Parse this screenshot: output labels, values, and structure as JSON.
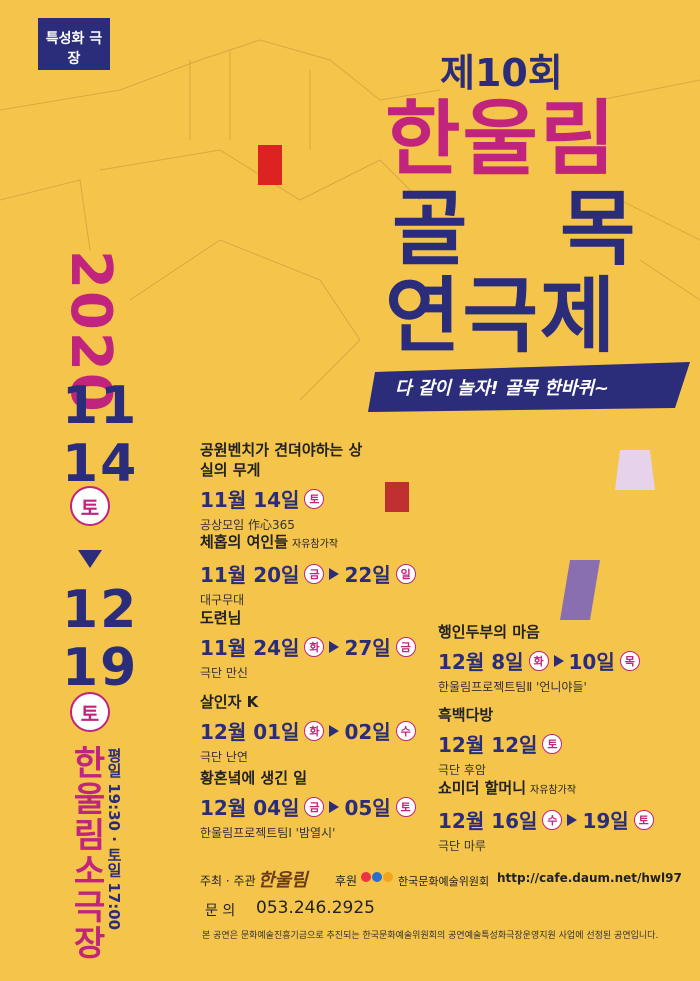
{
  "badge": "특성화 극장",
  "edition": "제10회",
  "title": {
    "line1": "한울림",
    "line2": "골 목",
    "line3": "연극제"
  },
  "slogan": "다 같이 놀자! 골목 한바퀴~",
  "period": {
    "year": "2020",
    "start": {
      "month": "11",
      "day": "14",
      "weekday": "토"
    },
    "end": {
      "month": "12",
      "day": "19",
      "weekday": "토"
    }
  },
  "venue": "한울림소극장",
  "showtimes": "평일 19:30 · 토일 17:00",
  "events": [
    {
      "title": "공원벤치가 견뎌야하는 상실의 무게",
      "start": {
        "date": "11월 14일",
        "weekday": "토"
      },
      "company": "공상모임 作心365"
    },
    {
      "title": "체홉의 여인들",
      "note": "자유참가작",
      "start": {
        "date": "11월 20일",
        "weekday": "금"
      },
      "end": {
        "date": "22일",
        "weekday": "일"
      },
      "company": "대구무대"
    },
    {
      "title": "도련님",
      "start": {
        "date": "11월 24일",
        "weekday": "화"
      },
      "end": {
        "date": "27일",
        "weekday": "금"
      },
      "company": "극단 만신"
    },
    {
      "title": "살인자 K",
      "start": {
        "date": "12월 01일",
        "weekday": "화"
      },
      "end": {
        "date": "02일",
        "weekday": "수"
      },
      "company": "극단 난연"
    },
    {
      "title": "황혼녘에 생긴 일",
      "start": {
        "date": "12월 04일",
        "weekday": "금"
      },
      "end": {
        "date": "05일",
        "weekday": "토"
      },
      "company": "한울림프로젝트팀Ⅰ '밤열시'"
    },
    {
      "title": "행인두부의 마음",
      "start": {
        "date": "12월 8일",
        "weekday": "화"
      },
      "end": {
        "date": "10일",
        "weekday": "목"
      },
      "company": "한울림프로젝트팀Ⅱ '언니야들'"
    },
    {
      "title": "흑백다방",
      "start": {
        "date": "12월 12일",
        "weekday": "토"
      },
      "company": "극단 후암"
    },
    {
      "title": "쇼미더 할머니",
      "note": "자유참가작",
      "start": {
        "date": "12월 16일",
        "weekday": "수"
      },
      "end": {
        "date": "19일",
        "weekday": "토"
      },
      "company": "극단 마루"
    }
  ],
  "footer": {
    "host_label": "주최 · 주관",
    "host": "한울림",
    "sponsor_label": "후원",
    "sponsor": "한국문화예술위원회",
    "url": "http://cafe.daum.net/hwl97",
    "contact_label": "문 의",
    "contact": "053.246.2925",
    "notice": "본 공연은 문화예술진흥기금으로 추진되는 한국문화예술위원회의 공연예술특성화극장운영지원 사업에 선정된 공연입니다."
  }
}
